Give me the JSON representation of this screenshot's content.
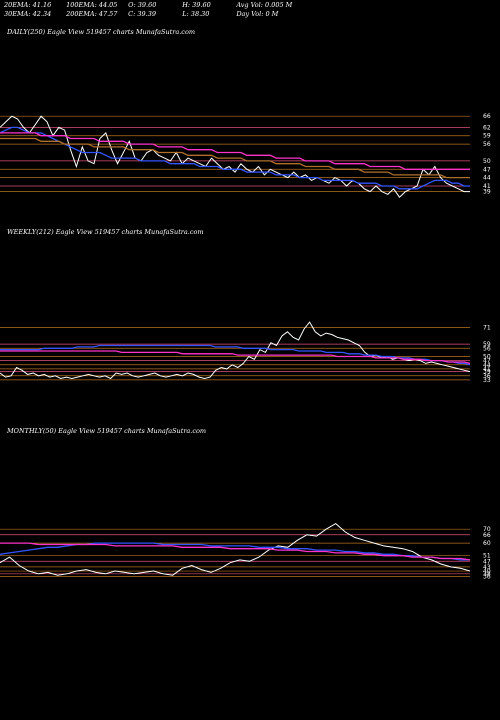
{
  "header": {
    "row1": [
      "20EMA: 41.16",
      "100EMA: 44.05",
      "O: 39.60",
      "H: 39.60",
      "Avg Vol: 0.005  M"
    ],
    "row2": [
      "30EMA: 42.34",
      "200EMA: 47.57",
      "C: 39.39",
      "L: 38.30",
      "Day Vol: 0  M"
    ]
  },
  "colors": {
    "background": "#000000",
    "price": "#ffffff",
    "ema_blue": "#3355ff",
    "ema_magenta": "#ff33cc",
    "ema_orange": "#b0702a",
    "level_line": "#b8721f",
    "level_line_pink": "#e0507a"
  },
  "chart_data": [
    {
      "type": "line",
      "title": "DAILY(250) Eagle  View  519457 charts MunafaSutra.com",
      "y_ticks": [
        66,
        62,
        59,
        56,
        50,
        47,
        44,
        41,
        39
      ],
      "ylim": [
        36,
        70
      ],
      "series": [
        {
          "role": "price",
          "values": [
            62,
            64,
            66,
            65,
            62,
            60,
            63,
            66,
            64,
            59,
            62,
            61,
            54,
            48,
            55,
            50,
            49,
            58,
            60,
            54,
            49,
            53,
            57,
            51,
            50,
            53,
            54,
            52,
            51,
            50,
            53,
            49,
            51,
            50,
            49,
            48,
            51,
            49,
            47,
            48,
            46,
            49,
            47,
            46,
            48,
            45,
            47,
            46,
            45,
            44,
            46,
            44,
            45,
            43,
            44,
            43,
            42,
            44,
            43,
            41,
            43,
            42,
            40,
            39,
            41,
            39,
            38,
            40,
            37,
            39,
            40,
            41,
            47,
            45,
            48,
            44,
            42,
            41,
            40,
            39,
            39
          ]
        },
        {
          "role": "ema20",
          "values": [
            60,
            61,
            62,
            62,
            61,
            60,
            60,
            60,
            59,
            58,
            57,
            56,
            55,
            54,
            53,
            53,
            53,
            53,
            52,
            51,
            51,
            51,
            51,
            51,
            50,
            50,
            50,
            50,
            50,
            49,
            49,
            49,
            49,
            49,
            48,
            48,
            48,
            48,
            47,
            47,
            47,
            47,
            46,
            46,
            46,
            46,
            46,
            45,
            45,
            45,
            45,
            44,
            44,
            44,
            44,
            43,
            43,
            43,
            43,
            43,
            43,
            42,
            42,
            42,
            42,
            41,
            41,
            41,
            40,
            40,
            40,
            40,
            41,
            42,
            43,
            43,
            43,
            42,
            42,
            41,
            41
          ]
        },
        {
          "role": "ema100",
          "values": [
            58,
            58,
            58,
            58,
            58,
            58,
            58,
            57,
            57,
            57,
            57,
            56,
            56,
            56,
            56,
            56,
            55,
            55,
            55,
            55,
            55,
            55,
            54,
            54,
            54,
            54,
            54,
            53,
            53,
            53,
            53,
            53,
            52,
            52,
            52,
            52,
            52,
            51,
            51,
            51,
            51,
            51,
            50,
            50,
            50,
            50,
            50,
            49,
            49,
            49,
            49,
            49,
            48,
            48,
            48,
            48,
            48,
            47,
            47,
            47,
            47,
            47,
            46,
            46,
            46,
            46,
            46,
            45,
            45,
            45,
            45,
            45,
            45,
            45,
            45,
            45,
            44,
            44,
            44,
            44,
            44
          ]
        },
        {
          "role": "ema200",
          "values": [
            60,
            60,
            60,
            60,
            60,
            60,
            60,
            59,
            59,
            59,
            59,
            59,
            58,
            58,
            58,
            58,
            58,
            57,
            57,
            57,
            57,
            57,
            56,
            56,
            56,
            56,
            56,
            55,
            55,
            55,
            55,
            55,
            54,
            54,
            54,
            54,
            54,
            53,
            53,
            53,
            53,
            53,
            52,
            52,
            52,
            52,
            52,
            51,
            51,
            51,
            51,
            51,
            50,
            50,
            50,
            50,
            50,
            49,
            49,
            49,
            49,
            49,
            49,
            48,
            48,
            48,
            48,
            48,
            48,
            47,
            47,
            47,
            47,
            47,
            47,
            47,
            47,
            47,
            47,
            47,
            47
          ]
        }
      ]
    },
    {
      "type": "line",
      "title": "WEEKLY(212) Eagle  View  519457 charts MunafaSutra.com",
      "y_ticks": [
        71,
        59,
        56,
        50,
        47,
        44,
        41,
        39,
        36,
        33
      ],
      "ylim": [
        30,
        78
      ],
      "series": [
        {
          "role": "price",
          "values": [
            38,
            35,
            36,
            42,
            40,
            37,
            38,
            36,
            37,
            35,
            36,
            34,
            35,
            34,
            35,
            36,
            37,
            36,
            35,
            36,
            34,
            38,
            37,
            38,
            36,
            35,
            36,
            37,
            38,
            36,
            35,
            36,
            37,
            36,
            38,
            37,
            35,
            34,
            35,
            40,
            42,
            41,
            44,
            42,
            45,
            50,
            48,
            55,
            53,
            60,
            58,
            65,
            68,
            64,
            62,
            70,
            75,
            68,
            65,
            67,
            66,
            64,
            63,
            62,
            60,
            58,
            53,
            50,
            51,
            49,
            50,
            48,
            49,
            48,
            47,
            48,
            47,
            45,
            46,
            45,
            44,
            43,
            42,
            41,
            40,
            39
          ]
        },
        {
          "role": "ema_a",
          "values": [
            55,
            55,
            55,
            55,
            55,
            55,
            55,
            55,
            56,
            56,
            56,
            56,
            56,
            56,
            57,
            57,
            57,
            57,
            58,
            58,
            58,
            58,
            58,
            58,
            58,
            58,
            58,
            58,
            58,
            58,
            58,
            58,
            58,
            58,
            58,
            58,
            58,
            58,
            58,
            57,
            57,
            57,
            57,
            57,
            56,
            56,
            56,
            56,
            56,
            55,
            55,
            55,
            55,
            55,
            54,
            54,
            54,
            54,
            54,
            53,
            53,
            53,
            53,
            52,
            52,
            52,
            51,
            51,
            51,
            50,
            50,
            50,
            49,
            49,
            49,
            48,
            48,
            48,
            47,
            47,
            47,
            46,
            46,
            45,
            45,
            44
          ]
        },
        {
          "role": "ema_b",
          "values": [
            54,
            54,
            54,
            54,
            54,
            54,
            54,
            54,
            54,
            54,
            54,
            54,
            54,
            54,
            54,
            54,
            54,
            54,
            54,
            54,
            54,
            54,
            53,
            53,
            53,
            53,
            53,
            53,
            53,
            53,
            53,
            53,
            53,
            52,
            52,
            52,
            52,
            52,
            52,
            52,
            52,
            52,
            52,
            51,
            51,
            51,
            51,
            51,
            51,
            51,
            51,
            51,
            51,
            51,
            51,
            51,
            51,
            51,
            51,
            51,
            51,
            50,
            50,
            50,
            50,
            50,
            50,
            50,
            49,
            49,
            49,
            49,
            49,
            48,
            48,
            48,
            48,
            47,
            47,
            47,
            47,
            46,
            46,
            46,
            46,
            45
          ]
        }
      ]
    },
    {
      "type": "line",
      "title": "MONTHLY(50) Eagle  View  519457 charts MunafaSutra.com",
      "y_ticks": [
        70,
        66,
        60,
        51,
        47,
        43,
        40,
        38,
        36
      ],
      "ylim": [
        30,
        78
      ],
      "series": [
        {
          "role": "price",
          "values": [
            46,
            50,
            44,
            40,
            38,
            39,
            37,
            38,
            40,
            41,
            39,
            38,
            40,
            39,
            38,
            39,
            40,
            38,
            37,
            42,
            44,
            41,
            39,
            42,
            46,
            48,
            47,
            50,
            55,
            58,
            57,
            62,
            66,
            65,
            70,
            74,
            68,
            64,
            62,
            60,
            58,
            57,
            56,
            54,
            50,
            48,
            45,
            43,
            42,
            40
          ]
        },
        {
          "role": "ema_a",
          "values": [
            52,
            53,
            54,
            55,
            56,
            57,
            57,
            58,
            59,
            59,
            60,
            60,
            60,
            60,
            60,
            60,
            60,
            59,
            59,
            59,
            59,
            59,
            58,
            58,
            58,
            58,
            58,
            57,
            57,
            57,
            56,
            56,
            56,
            55,
            55,
            55,
            54,
            54,
            53,
            53,
            52,
            52,
            51,
            51,
            50,
            50,
            49,
            49,
            48,
            48
          ]
        },
        {
          "role": "ema_b",
          "values": [
            60,
            60,
            60,
            60,
            59,
            59,
            59,
            59,
            59,
            59,
            59,
            59,
            58,
            58,
            58,
            58,
            58,
            58,
            58,
            57,
            57,
            57,
            57,
            57,
            56,
            56,
            56,
            56,
            56,
            55,
            55,
            55,
            54,
            54,
            54,
            53,
            53,
            53,
            52,
            52,
            51,
            51,
            51,
            50,
            50,
            50,
            49,
            49,
            49,
            48
          ]
        }
      ]
    }
  ]
}
